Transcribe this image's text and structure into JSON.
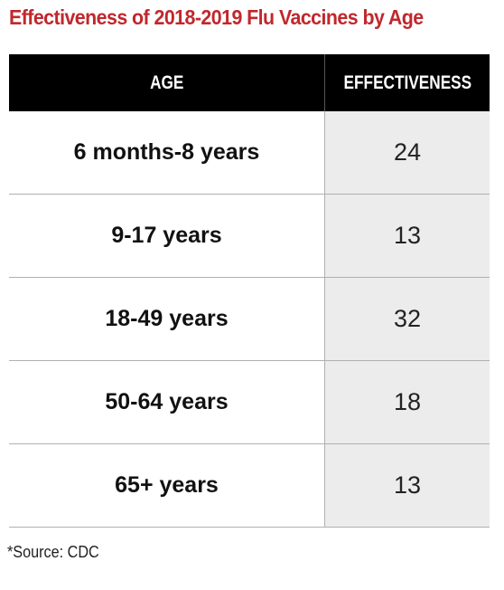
{
  "title": "Effectiveness of 2018-2019 Flu Vaccines by Age",
  "source": "*Source: CDC",
  "colors": {
    "title": "#c0282d",
    "header_bg": "#000000",
    "header_text": "#ffffff",
    "value_column_bg": "#ececec"
  },
  "chart_data": {
    "type": "table",
    "title": "Effectiveness of 2018-2019 Flu Vaccines by Age",
    "columns": [
      "AGE",
      "EFFECTIVENESS"
    ],
    "rows": [
      {
        "age": "6 months-8 years",
        "effectiveness": "24"
      },
      {
        "age": "9-17 years",
        "effectiveness": "13"
      },
      {
        "age": "18-49 years",
        "effectiveness": "32"
      },
      {
        "age": "50-64 years",
        "effectiveness": "18"
      },
      {
        "age": "65+ years",
        "effectiveness": "13"
      }
    ]
  }
}
